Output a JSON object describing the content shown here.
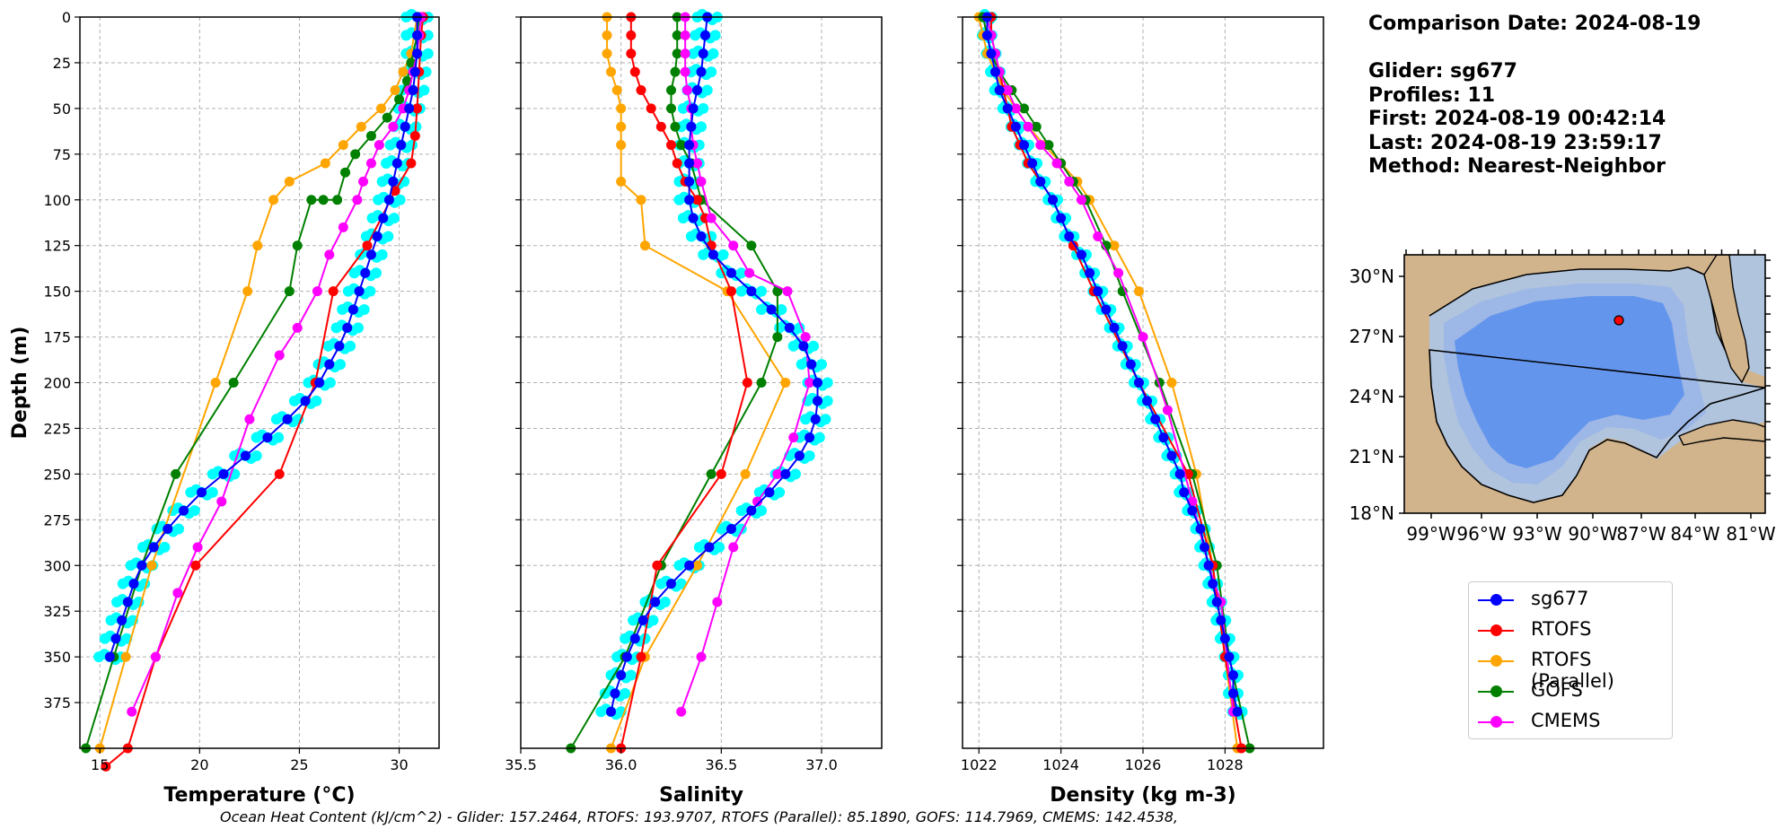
{
  "info": {
    "comparison_date": "Comparison Date: 2024-08-19",
    "glider": "Glider: sg677",
    "profiles": "Profiles: 11",
    "first": "First: 2024-08-19 00:42:14",
    "last": "Last: 2024-08-19 23:59:17",
    "method": "Method: Nearest-Neighbor"
  },
  "footer": "Ocean Heat Content (kJ/cm^2) - Glider: 157.2464,  RTOFS: 193.9707,  RTOFS (Parallel): 85.1890,  GOFS: 114.7969,  CMEMS: 142.4538,",
  "colors": {
    "sg677": "#0000ff",
    "RTOFS": "#ff0000",
    "RTOFS (Parallel)": "#ffa500",
    "GOFS": "#008000",
    "CMEMS": "#ff00ff",
    "glider_raw": "#00ffff",
    "land": "#d2b48c",
    "shelf": "#b0c4de",
    "mid": "#9db7e6",
    "deep": "#6495ed"
  },
  "legend": [
    "sg677",
    "RTOFS",
    "RTOFS (Parallel)",
    "GOFS",
    "CMEMS"
  ],
  "map": {
    "lat_labels": [
      "30°N",
      "27°N",
      "24°N",
      "21°N",
      "18°N"
    ],
    "lon_labels": [
      "99°W",
      "96°W",
      "93°W",
      "90°W",
      "87°W",
      "84°W",
      "81°W"
    ],
    "glider_position": {
      "lon": -88.0,
      "lat": 27.9
    }
  },
  "chart_data": [
    {
      "type": "line",
      "xlabel": "Temperature (°C)",
      "ylabel": "Depth (m)",
      "xlim": [
        14,
        32
      ],
      "ylim": [
        400,
        0
      ],
      "xticks": [
        15,
        20,
        25,
        30
      ],
      "yticks": [
        0,
        25,
        50,
        75,
        100,
        125,
        150,
        175,
        200,
        225,
        250,
        275,
        300,
        325,
        350,
        375
      ],
      "grid": true,
      "series": [
        {
          "name": "RTOFS",
          "x": [
            31.2,
            31.1,
            31.0,
            30.9,
            30.8,
            30.6,
            29.8,
            28.4,
            26.7,
            25.8,
            24.0,
            19.8,
            17.8,
            16.4,
            15.3
          ],
          "y": [
            0,
            10,
            30,
            50,
            65,
            80,
            95,
            125,
            150,
            200,
            250,
            300,
            350,
            400,
            410
          ]
        },
        {
          "name": "RTOFS (Parallel)",
          "x": [
            30.9,
            30.6,
            30.2,
            29.8,
            29.1,
            28.1,
            27.2,
            26.3,
            24.5,
            23.7,
            22.9,
            22.4,
            20.8,
            17.6,
            16.3,
            15.0
          ],
          "y": [
            0,
            20,
            30,
            40,
            50,
            60,
            70,
            80,
            90,
            100,
            125,
            150,
            200,
            300,
            350,
            400
          ]
        },
        {
          "name": "GOFS",
          "x": [
            31.0,
            30.9,
            30.6,
            30.4,
            30.0,
            29.4,
            28.6,
            27.8,
            27.3,
            26.9,
            26.2,
            25.6,
            24.9,
            24.5,
            21.7,
            18.8,
            17.1,
            15.7,
            14.3
          ],
          "y": [
            0,
            10,
            25,
            35,
            45,
            55,
            65,
            75,
            85,
            100,
            100,
            100,
            125,
            150,
            200,
            250,
            300,
            350,
            400
          ]
        },
        {
          "name": "CMEMS",
          "x": [
            31.1,
            31.0,
            30.9,
            30.7,
            30.5,
            30.2,
            29.7,
            29.0,
            28.6,
            28.2,
            27.9,
            27.2,
            26.5,
            25.9,
            24.9,
            24.0,
            22.5,
            21.1,
            19.9,
            18.9,
            17.8,
            16.6
          ],
          "y": [
            0,
            10,
            20,
            30,
            40,
            50,
            60,
            70,
            80,
            90,
            100,
            115,
            130,
            150,
            170,
            185,
            220,
            265,
            290,
            315,
            350,
            380
          ]
        },
        {
          "name": "sg677",
          "x": [
            30.9,
            30.9,
            30.9,
            30.8,
            30.7,
            30.5,
            30.3,
            30.1,
            29.9,
            29.7,
            29.5,
            29.2,
            28.9,
            28.6,
            28.3,
            28.0,
            27.7,
            27.4,
            27.0,
            26.5,
            26.0,
            25.3,
            24.4,
            23.4,
            22.3,
            21.2,
            20.1,
            19.2,
            18.4,
            17.7,
            17.1,
            16.7,
            16.4,
            16.1,
            15.8,
            15.5
          ],
          "y": [
            0,
            10,
            20,
            30,
            40,
            50,
            60,
            70,
            80,
            90,
            100,
            110,
            120,
            130,
            140,
            150,
            160,
            170,
            180,
            190,
            200,
            210,
            220,
            230,
            240,
            250,
            260,
            270,
            280,
            290,
            300,
            310,
            320,
            330,
            340,
            350
          ]
        }
      ]
    },
    {
      "type": "line",
      "xlabel": "Salinity",
      "xlim": [
        35.5,
        37.3
      ],
      "ylim": [
        400,
        0
      ],
      "xticks": [
        35.5,
        36.0,
        36.5,
        37.0
      ],
      "grid": true,
      "series": [
        {
          "name": "RTOFS",
          "x": [
            36.05,
            36.05,
            36.05,
            36.07,
            36.1,
            36.15,
            36.2,
            36.25,
            36.28,
            36.32,
            36.38,
            36.42,
            36.45,
            36.55,
            36.63,
            36.5,
            36.18,
            36.1,
            36.0
          ],
          "y": [
            0,
            10,
            20,
            30,
            40,
            50,
            60,
            70,
            80,
            90,
            100,
            110,
            125,
            150,
            200,
            250,
            300,
            350,
            400
          ]
        },
        {
          "name": "RTOFS (Parallel)",
          "x": [
            35.93,
            35.93,
            35.93,
            35.95,
            35.98,
            36.0,
            36.0,
            36.0,
            36.0,
            36.1,
            36.12,
            36.53,
            36.82,
            36.62,
            36.38,
            36.12,
            35.95
          ],
          "y": [
            0,
            10,
            20,
            30,
            40,
            50,
            60,
            70,
            90,
            100,
            125,
            150,
            200,
            250,
            300,
            350,
            400
          ]
        },
        {
          "name": "GOFS",
          "x": [
            36.28,
            36.28,
            36.28,
            36.27,
            36.25,
            36.25,
            36.27,
            36.3,
            36.35,
            36.4,
            36.65,
            36.78,
            36.78,
            36.7,
            36.45,
            36.2,
            36.02,
            35.75
          ],
          "y": [
            0,
            10,
            20,
            30,
            40,
            50,
            60,
            70,
            80,
            100,
            125,
            150,
            175,
            200,
            250,
            300,
            350,
            400
          ]
        },
        {
          "name": "CMEMS",
          "x": [
            36.32,
            36.32,
            36.32,
            36.32,
            36.33,
            36.35,
            36.35,
            36.36,
            36.38,
            36.4,
            36.45,
            36.56,
            36.64,
            36.83,
            36.92,
            36.94,
            36.86,
            36.78,
            36.68,
            36.56,
            36.48,
            36.4,
            36.3
          ],
          "y": [
            0,
            10,
            20,
            30,
            40,
            50,
            60,
            70,
            80,
            90,
            110,
            125,
            140,
            150,
            175,
            200,
            230,
            250,
            265,
            290,
            320,
            350,
            380
          ]
        },
        {
          "name": "sg677",
          "x": [
            36.43,
            36.42,
            36.41,
            36.4,
            36.38,
            36.36,
            36.35,
            36.34,
            36.34,
            36.34,
            36.34,
            36.36,
            36.4,
            36.46,
            36.55,
            36.65,
            36.75,
            36.84,
            36.91,
            36.95,
            36.98,
            36.98,
            36.97,
            36.94,
            36.89,
            36.82,
            36.74,
            36.65,
            36.55,
            36.44,
            36.34,
            36.25,
            36.17,
            36.11,
            36.07,
            36.03,
            36.0,
            35.97,
            35.95
          ],
          "y": [
            0,
            10,
            20,
            30,
            40,
            50,
            60,
            70,
            80,
            90,
            100,
            110,
            120,
            130,
            140,
            150,
            160,
            170,
            180,
            190,
            200,
            210,
            220,
            230,
            240,
            250,
            260,
            270,
            280,
            290,
            300,
            310,
            320,
            330,
            340,
            350,
            360,
            370,
            380
          ]
        }
      ]
    },
    {
      "type": "line",
      "xlabel": "Density (kg m-3)",
      "xlim": [
        1021.6,
        1030.4
      ],
      "ylim": [
        400,
        0
      ],
      "xticks": [
        1022,
        1024,
        1026,
        1028
      ],
      "grid": true,
      "series": [
        {
          "name": "RTOFS",
          "x": [
            1022.3,
            1022.3,
            1022.4,
            1022.5,
            1022.6,
            1022.7,
            1022.8,
            1023.0,
            1023.2,
            1023.5,
            1023.8,
            1024.3,
            1024.8,
            1025.9,
            1027.1,
            1027.7,
            1028.0,
            1028.4
          ],
          "y": [
            0,
            10,
            20,
            30,
            40,
            50,
            60,
            70,
            80,
            90,
            100,
            125,
            150,
            200,
            250,
            300,
            350,
            400
          ]
        },
        {
          "name": "RTOFS (Parallel)",
          "x": [
            1022.0,
            1022.1,
            1022.2,
            1022.4,
            1022.6,
            1022.9,
            1023.2,
            1023.6,
            1024.0,
            1024.4,
            1024.7,
            1025.3,
            1025.9,
            1026.7,
            1027.3,
            1027.7,
            1028.0,
            1028.3
          ],
          "y": [
            0,
            10,
            20,
            30,
            40,
            50,
            60,
            70,
            80,
            90,
            100,
            125,
            150,
            200,
            250,
            300,
            350,
            400
          ]
        },
        {
          "name": "GOFS",
          "x": [
            1022.1,
            1022.2,
            1022.3,
            1022.5,
            1022.8,
            1023.1,
            1023.4,
            1023.7,
            1024.0,
            1024.3,
            1024.6,
            1025.1,
            1025.5,
            1026.4,
            1027.2,
            1027.8,
            1028.1,
            1028.6
          ],
          "y": [
            0,
            10,
            20,
            30,
            40,
            50,
            60,
            70,
            80,
            90,
            100,
            125,
            150,
            200,
            250,
            300,
            350,
            400
          ]
        },
        {
          "name": "CMEMS",
          "x": [
            1022.2,
            1022.3,
            1022.4,
            1022.5,
            1022.7,
            1022.9,
            1023.2,
            1023.5,
            1023.9,
            1024.2,
            1024.5,
            1024.9,
            1025.4,
            1026.0,
            1026.6,
            1027.2,
            1027.6,
            1027.9,
            1028.2
          ],
          "y": [
            0,
            10,
            20,
            30,
            40,
            50,
            60,
            70,
            80,
            90,
            100,
            120,
            140,
            175,
            215,
            265,
            300,
            320,
            380
          ]
        },
        {
          "name": "sg677",
          "x": [
            1022.2,
            1022.2,
            1022.3,
            1022.4,
            1022.5,
            1022.7,
            1022.9,
            1023.1,
            1023.3,
            1023.5,
            1023.8,
            1024.0,
            1024.2,
            1024.5,
            1024.7,
            1024.9,
            1025.1,
            1025.3,
            1025.5,
            1025.7,
            1025.9,
            1026.1,
            1026.3,
            1026.5,
            1026.7,
            1026.9,
            1027.0,
            1027.2,
            1027.4,
            1027.5,
            1027.6,
            1027.7,
            1027.8,
            1027.9,
            1028.0,
            1028.1,
            1028.2,
            1028.2,
            1028.3
          ],
          "y": [
            0,
            10,
            20,
            30,
            40,
            50,
            60,
            70,
            80,
            90,
            100,
            110,
            120,
            130,
            140,
            150,
            160,
            170,
            180,
            190,
            200,
            210,
            220,
            230,
            240,
            250,
            260,
            270,
            280,
            290,
            300,
            310,
            320,
            330,
            340,
            350,
            360,
            370,
            380
          ]
        }
      ]
    }
  ]
}
